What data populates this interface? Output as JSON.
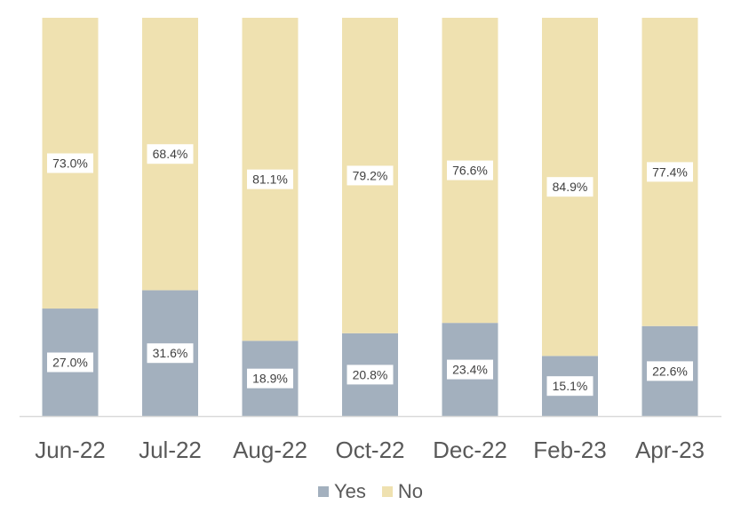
{
  "chart_data": {
    "type": "bar",
    "stacked": true,
    "categories": [
      "Jun-22",
      "Jul-22",
      "Aug-22",
      "Oct-22",
      "Dec-22",
      "Feb-23",
      "Apr-23"
    ],
    "series": [
      {
        "name": "Yes",
        "color": "#a3b0be",
        "values": [
          27.0,
          31.6,
          18.9,
          20.8,
          23.4,
          15.1,
          22.6
        ],
        "labels": [
          "27.0%",
          "31.6%",
          "18.9%",
          "20.8%",
          "23.4%",
          "15.1%",
          "22.6%"
        ]
      },
      {
        "name": "No",
        "color": "#efe1b0",
        "values": [
          73.0,
          68.4,
          81.1,
          79.2,
          76.6,
          84.9,
          77.4
        ],
        "labels": [
          "73.0%",
          "68.4%",
          "81.1%",
          "79.2%",
          "76.6%",
          "84.9%",
          "77.4%"
        ]
      }
    ],
    "ylim": [
      0,
      100
    ],
    "grid": false,
    "legend": "bottom"
  }
}
